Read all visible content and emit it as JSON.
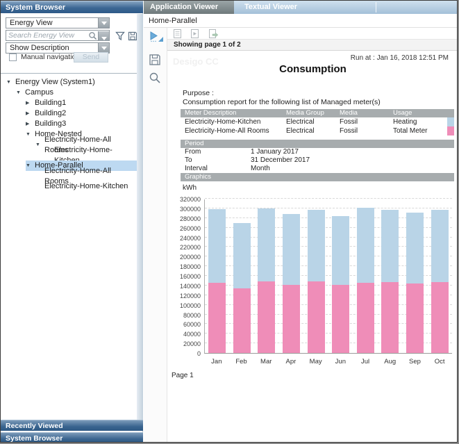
{
  "left_panel": {
    "header": "System Browser",
    "view_selector": {
      "value": "Energy View"
    },
    "search": {
      "placeholder": "Search Energy View"
    },
    "description_selector": {
      "value": "Show Description"
    },
    "manual_navigation_label": "Manual navigation",
    "send_button": "Send",
    "tree": [
      {
        "label": "Energy View (System1)",
        "level": 0,
        "state": "expanded"
      },
      {
        "label": "Campus",
        "level": 1,
        "state": "expanded"
      },
      {
        "label": "Building1",
        "level": 2,
        "state": "collapsed"
      },
      {
        "label": "Building2",
        "level": 2,
        "state": "collapsed"
      },
      {
        "label": "Building3",
        "level": 2,
        "state": "collapsed"
      },
      {
        "label": "Home-Nested",
        "level": 2,
        "state": "expanded"
      },
      {
        "label": "Electricity-Home-All Rooms",
        "level": 3,
        "state": "expanded"
      },
      {
        "label": "Electricity-Home-Kitchen",
        "level": 4,
        "state": "leaf"
      },
      {
        "label": "Home-Parallel",
        "level": 2,
        "state": "expanded",
        "selected": true
      },
      {
        "label": "Electricity-Home-All Rooms",
        "level": 3,
        "state": "leaf"
      },
      {
        "label": "Electricity-Home-Kitchen",
        "level": 3,
        "state": "leaf"
      }
    ],
    "bottom_bars": [
      "Recently Viewed",
      "System Browser"
    ]
  },
  "right_panel": {
    "tabs": [
      {
        "label": "Application Viewer",
        "active": true
      },
      {
        "label": "Textual Viewer",
        "active": false
      }
    ],
    "selection_label": "Home-Parallel",
    "paging_text": "Showing page 1  of  2",
    "report": {
      "watermark": "Desigo CC",
      "run_at": "Run at : Jan 16, 2018 12:51 PM",
      "title": "Consumption",
      "purpose_label": "Purpose :",
      "purpose_text": "Consumption report for the following list of Managed meter(s)",
      "meter_table": {
        "headers": [
          "Meter Description",
          "Media Group",
          "Media",
          "Usage"
        ],
        "rows": [
          {
            "cells": [
              "Electricity-Home-Kitchen",
              "Electrical",
              "Fossil",
              "Heating"
            ],
            "swatch": "#b9d4e7"
          },
          {
            "cells": [
              "Electricity-Home-All Rooms",
              "Electrical",
              "Fossil",
              "Total Meter"
            ],
            "swatch": "#ef8db8"
          }
        ]
      },
      "period": {
        "title": "Period",
        "rows": [
          [
            "From",
            "1 January 2017"
          ],
          [
            "To",
            "31 December 2017"
          ],
          [
            "Interval",
            "Month"
          ]
        ]
      },
      "graphics_title": "Graphics",
      "unit_label": "kWh",
      "page_footer": "Page 1"
    }
  },
  "chart_data": {
    "type": "bar",
    "stacked": true,
    "categories": [
      "Jan",
      "Feb",
      "Mar",
      "Apr",
      "May",
      "Jun",
      "Jul",
      "Aug",
      "Sep",
      "Oct"
    ],
    "series": [
      {
        "name": "Electricity-Home-All Rooms (Total Meter)",
        "color": "#ef8db8",
        "values": [
          146000,
          134000,
          148000,
          142000,
          148000,
          141000,
          146000,
          147000,
          144000,
          147000
        ]
      },
      {
        "name": "Electricity-Home-Kitchen (Heating)",
        "color": "#b9d4e7",
        "values": [
          153000,
          136000,
          152000,
          146000,
          149000,
          143000,
          155000,
          150000,
          147000,
          150000
        ]
      }
    ],
    "title": "Consumption",
    "xlabel": "",
    "ylabel": "kWh",
    "ylim": [
      0,
      320000
    ],
    "ytick_step": 20000,
    "grid": "horizontal-dashed",
    "legend": "none"
  },
  "colors": {
    "header_accent": "#3c6794",
    "selection_highlight": "#bdd9f1",
    "section_bar": "#a7acae",
    "series_pink": "#ef8db8",
    "series_blue": "#b9d4e7"
  }
}
